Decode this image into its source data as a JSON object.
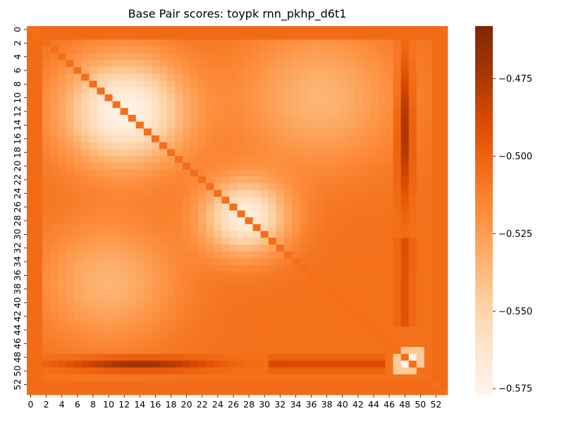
{
  "chart_data": {
    "type": "heatmap",
    "title": "Base Pair scores: toypk rnn_pkhp_d6t1",
    "xlabel": "",
    "ylabel": "",
    "n": 54,
    "x_ticks": [
      0,
      2,
      4,
      6,
      8,
      10,
      12,
      14,
      16,
      18,
      20,
      22,
      24,
      26,
      28,
      30,
      32,
      34,
      36,
      38,
      40,
      42,
      44,
      46,
      48,
      50,
      52
    ],
    "y_ticks": [
      0,
      2,
      4,
      6,
      8,
      10,
      12,
      14,
      16,
      18,
      20,
      22,
      24,
      26,
      28,
      30,
      32,
      34,
      36,
      38,
      40,
      42,
      44,
      46,
      48,
      50,
      52
    ],
    "colorbar": {
      "vmin": -0.577,
      "vmax": -0.458,
      "ticks": [
        -0.475,
        -0.5,
        -0.525,
        -0.55,
        -0.575
      ],
      "tick_labels": [
        "−0.475",
        "−0.500",
        "−0.525",
        "−0.550",
        "−0.575"
      ],
      "colormap": "Oranges_reversed"
    },
    "diagonal_value": -0.505,
    "base_value": -0.506,
    "features": [
      {
        "name": "bright-lobe-upper-left",
        "center_i": 12,
        "center_j": 12,
        "spread": 5.5,
        "peak_value": -0.575
      },
      {
        "name": "bright-lobe-center",
        "center_i": 27.5,
        "center_j": 27.5,
        "spread": 3.8,
        "peak_value": -0.57
      },
      {
        "name": "medium-lobe-upper-right",
        "center_i": 10,
        "center_j": 37,
        "spread": 7,
        "peak_value": -0.535
      },
      {
        "name": "medium-lobe-lower-left",
        "center_i": 37,
        "center_j": 10,
        "spread": 6,
        "peak_value": -0.535
      },
      {
        "name": "dark-band-column-48",
        "column": 48,
        "rows": [
          5,
          23
        ],
        "peak_value": -0.468
      },
      {
        "name": "dark-band-row-49",
        "row": 49,
        "cols": [
          5,
          22
        ],
        "peak_value": -0.468
      },
      {
        "name": "bright-spot",
        "i": 48,
        "j": 49,
        "value": -0.575
      }
    ]
  }
}
